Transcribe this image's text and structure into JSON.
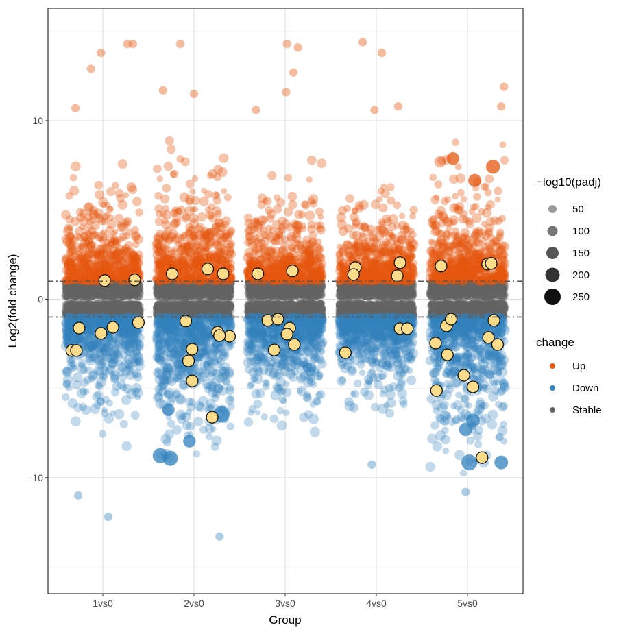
{
  "chart_data": {
    "type": "scatter",
    "xlabel": "Group",
    "ylabel": "Log2(fold change)",
    "categories": [
      "1vs0",
      "2vs0",
      "3vs0",
      "4vs0",
      "5vs0"
    ],
    "ylim": [
      -16.5,
      16.3
    ],
    "yticks": [
      -10,
      0,
      10
    ],
    "ytick_labels": [
      "−10",
      "0",
      "10"
    ],
    "thresholds": [
      -1,
      1
    ],
    "grid": true,
    "legend_position": "right",
    "size_legend": {
      "title": "−log10(padj)",
      "values": [
        50,
        100,
        150,
        200,
        250
      ],
      "labels": [
        "50",
        "100",
        "150",
        "200",
        "250"
      ],
      "colors": [
        "#9a9a9a",
        "#777777",
        "#555555",
        "#333333",
        "#111111"
      ]
    },
    "color_legend": {
      "title": "change",
      "entries": [
        {
          "label": "Up",
          "color": "#E6550D"
        },
        {
          "label": "Down",
          "color": "#3182BD"
        },
        {
          "label": "Stable",
          "color": "#636363"
        }
      ]
    },
    "highlight_color": "#FADB8A",
    "highlighted_points": [
      {
        "g": 0,
        "dx": 0.02,
        "y": 1.04
      },
      {
        "g": 0,
        "dx": 0.35,
        "y": 1.08
      },
      {
        "g": 0,
        "dx": -0.26,
        "y": -1.62
      },
      {
        "g": 0,
        "dx": -0.02,
        "y": -1.92
      },
      {
        "g": 0,
        "dx": 0.11,
        "y": -1.58
      },
      {
        "g": 0,
        "dx": 0.39,
        "y": -1.31
      },
      {
        "g": 0,
        "dx": -0.34,
        "y": -2.88
      },
      {
        "g": 0,
        "dx": -0.29,
        "y": -2.88
      },
      {
        "g": 1,
        "dx": -0.24,
        "y": 1.42
      },
      {
        "g": 1,
        "dx": 0.15,
        "y": 1.69
      },
      {
        "g": 1,
        "dx": 0.32,
        "y": 1.42
      },
      {
        "g": 1,
        "dx": -0.09,
        "y": -1.23
      },
      {
        "g": 1,
        "dx": 0.26,
        "y": -1.85
      },
      {
        "g": 1,
        "dx": 0.39,
        "y": -2.08
      },
      {
        "g": 1,
        "dx": 0.28,
        "y": -2.04
      },
      {
        "g": 1,
        "dx": -0.02,
        "y": -2.81
      },
      {
        "g": 1,
        "dx": -0.06,
        "y": -3.46
      },
      {
        "g": 1,
        "dx": -0.02,
        "y": -4.58
      },
      {
        "g": 1,
        "dx": 0.2,
        "y": -6.62
      },
      {
        "g": 2,
        "dx": -0.3,
        "y": 1.42
      },
      {
        "g": 2,
        "dx": 0.08,
        "y": 1.58
      },
      {
        "g": 2,
        "dx": -0.19,
        "y": -1.19
      },
      {
        "g": 2,
        "dx": -0.08,
        "y": -1.12
      },
      {
        "g": 2,
        "dx": 0.05,
        "y": -1.62
      },
      {
        "g": 2,
        "dx": 0.02,
        "y": -1.96
      },
      {
        "g": 2,
        "dx": 0.1,
        "y": -2.54
      },
      {
        "g": 2,
        "dx": -0.12,
        "y": -2.85
      },
      {
        "g": 3,
        "dx": -0.23,
        "y": 1.77
      },
      {
        "g": 3,
        "dx": -0.25,
        "y": 1.38
      },
      {
        "g": 3,
        "dx": 0.26,
        "y": 2.04
      },
      {
        "g": 3,
        "dx": 0.23,
        "y": 1.31
      },
      {
        "g": 3,
        "dx": 0.26,
        "y": -1.65
      },
      {
        "g": 3,
        "dx": 0.34,
        "y": -1.65
      },
      {
        "g": 3,
        "dx": -0.34,
        "y": -3.0
      },
      {
        "g": 4,
        "dx": -0.29,
        "y": 1.85
      },
      {
        "g": 4,
        "dx": 0.22,
        "y": 1.96
      },
      {
        "g": 4,
        "dx": 0.26,
        "y": 2.0
      },
      {
        "g": 4,
        "dx": -0.35,
        "y": -2.46
      },
      {
        "g": 4,
        "dx": -0.23,
        "y": -1.5
      },
      {
        "g": 4,
        "dx": -0.18,
        "y": -1.12
      },
      {
        "g": 4,
        "dx": -0.22,
        "y": -3.12
      },
      {
        "g": 4,
        "dx": -0.04,
        "y": -4.27
      },
      {
        "g": 4,
        "dx": 0.06,
        "y": -4.92
      },
      {
        "g": 4,
        "dx": 0.23,
        "y": -2.15
      },
      {
        "g": 4,
        "dx": 0.33,
        "y": -2.54
      },
      {
        "g": 4,
        "dx": 0.29,
        "y": -1.19
      },
      {
        "g": 4,
        "dx": -0.34,
        "y": -5.12
      },
      {
        "g": 4,
        "dx": 0.16,
        "y": -8.88
      }
    ],
    "notable_points": [
      {
        "g": 1,
        "dx": -0.37,
        "y": -8.77,
        "padj": 200,
        "change": "Down"
      },
      {
        "g": 1,
        "dx": -0.26,
        "y": -8.92,
        "padj": 200,
        "change": "Down"
      },
      {
        "g": 1,
        "dx": 0.3,
        "y": -6.46,
        "padj": 250,
        "change": "Down"
      },
      {
        "g": 1,
        "dx": -0.05,
        "y": -7.96,
        "padj": 120,
        "change": "Down"
      },
      {
        "g": 1,
        "dx": -0.28,
        "y": -6.2,
        "padj": 110,
        "change": "Down"
      },
      {
        "g": 4,
        "dx": 0.02,
        "y": -9.15,
        "padj": 230,
        "change": "Down"
      },
      {
        "g": 4,
        "dx": 0.37,
        "y": -9.15,
        "padj": 150,
        "change": "Down"
      },
      {
        "g": 4,
        "dx": -0.16,
        "y": 7.88,
        "padj": 120,
        "change": "Up"
      },
      {
        "g": 4,
        "dx": 0.28,
        "y": 7.42,
        "padj": 160,
        "change": "Up"
      },
      {
        "g": 4,
        "dx": 0.08,
        "y": 6.65,
        "padj": 130,
        "change": "Up"
      },
      {
        "g": 4,
        "dx": -0.3,
        "y": 7.7,
        "padj": 90,
        "change": "Up"
      },
      {
        "g": 4,
        "dx": -0.02,
        "y": -7.3,
        "padj": 140,
        "change": "Down"
      },
      {
        "g": 4,
        "dx": 0.06,
        "y": -6.8,
        "padj": 150,
        "change": "Down"
      },
      {
        "g": 0,
        "dx": -0.02,
        "y": 13.8,
        "padj": 30,
        "change": "Up"
      },
      {
        "g": 0,
        "dx": 0.27,
        "y": 14.3,
        "padj": 30,
        "change": "Up"
      },
      {
        "g": 0,
        "dx": 0.33,
        "y": 14.3,
        "padj": 30,
        "change": "Up"
      },
      {
        "g": 0,
        "dx": -0.13,
        "y": 12.9,
        "padj": 30,
        "change": "Up"
      },
      {
        "g": 0,
        "dx": -0.3,
        "y": 10.7,
        "padj": 30,
        "change": "Up"
      },
      {
        "g": 0,
        "dx": 0.06,
        "y": -12.2,
        "padj": 30,
        "change": "Down"
      },
      {
        "g": 0,
        "dx": -0.27,
        "y": -11.0,
        "padj": 30,
        "change": "Down"
      },
      {
        "g": 1,
        "dx": -0.15,
        "y": 14.3,
        "padj": 30,
        "change": "Up"
      },
      {
        "g": 1,
        "dx": -0.34,
        "y": 11.7,
        "padj": 30,
        "change": "Up"
      },
      {
        "g": 1,
        "dx": 0.0,
        "y": 11.5,
        "padj": 30,
        "change": "Up"
      },
      {
        "g": 1,
        "dx": 0.28,
        "y": -13.3,
        "padj": 30,
        "change": "Down"
      },
      {
        "g": 2,
        "dx": 0.02,
        "y": 14.3,
        "padj": 30,
        "change": "Up"
      },
      {
        "g": 2,
        "dx": 0.14,
        "y": 14.1,
        "padj": 30,
        "change": "Up"
      },
      {
        "g": 2,
        "dx": 0.09,
        "y": 12.7,
        "padj": 30,
        "change": "Up"
      },
      {
        "g": 2,
        "dx": 0.01,
        "y": 11.6,
        "padj": 30,
        "change": "Up"
      },
      {
        "g": 2,
        "dx": -0.32,
        "y": 10.6,
        "padj": 30,
        "change": "Up"
      },
      {
        "g": 3,
        "dx": -0.15,
        "y": 14.4,
        "padj": 30,
        "change": "Up"
      },
      {
        "g": 3,
        "dx": 0.06,
        "y": 13.8,
        "padj": 30,
        "change": "Up"
      },
      {
        "g": 3,
        "dx": -0.02,
        "y": 10.6,
        "padj": 30,
        "change": "Up"
      },
      {
        "g": 3,
        "dx": 0.24,
        "y": 10.8,
        "padj": 30,
        "change": "Up"
      },
      {
        "g": 3,
        "dx": -0.05,
        "y": -9.27,
        "padj": 30,
        "change": "Down"
      },
      {
        "g": 4,
        "dx": 0.4,
        "y": 11.9,
        "padj": 30,
        "change": "Up"
      },
      {
        "g": 4,
        "dx": 0.37,
        "y": 10.8,
        "padj": 30,
        "change": "Up"
      },
      {
        "g": 4,
        "dx": -0.02,
        "y": -10.8,
        "padj": 30,
        "change": "Down"
      }
    ]
  }
}
